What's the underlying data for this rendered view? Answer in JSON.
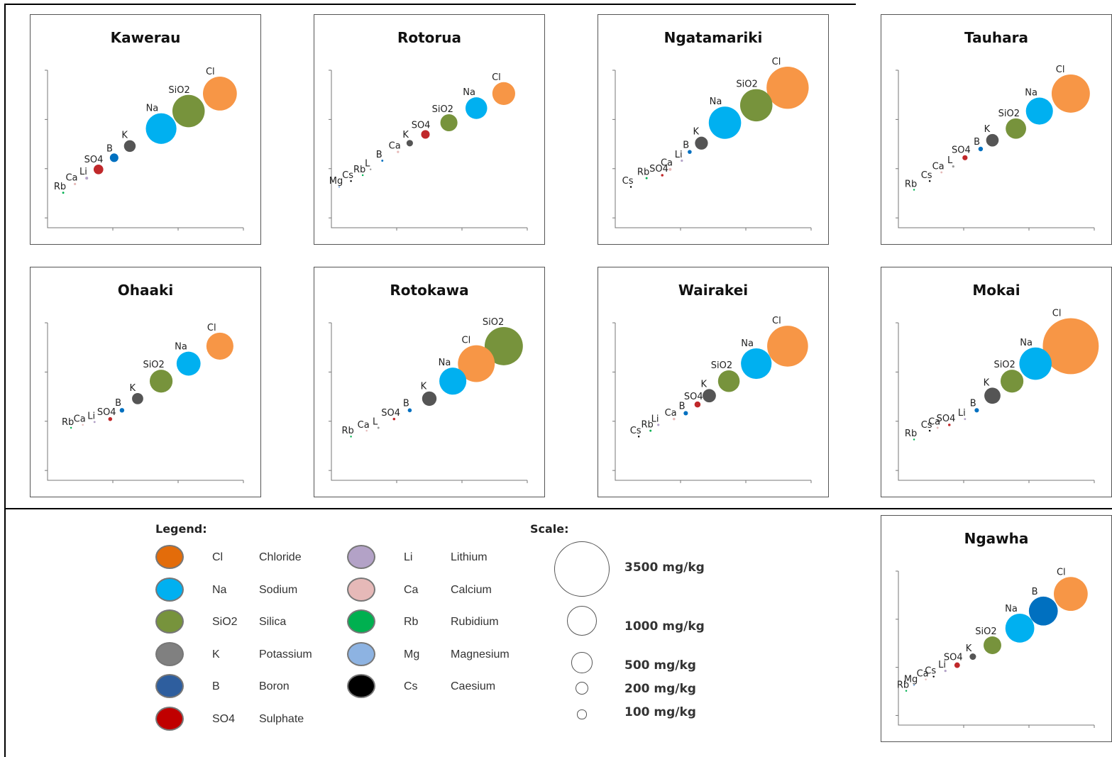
{
  "colors": {
    "Cl": "#f79646",
    "Na": "#00b0f0",
    "SiO2": "#77933c",
    "K": "#555555",
    "B": "#0070c0",
    "SO4": "#c0282a",
    "Li": "#b3a2c7",
    "Ca": "#e6b9b8",
    "Rb": "#00b050",
    "Mg": "#8db3e2",
    "Cs": "#000000"
  },
  "chart_data": [
    {
      "type": "scatter",
      "title": "Kawerau",
      "points": [
        {
          "label": "Cl",
          "x": 2.2,
          "y": 2.3,
          "size": 1100
        },
        {
          "label": "SiO2",
          "x": 1.8,
          "y": 2.0,
          "size": 1000
        },
        {
          "label": "Na",
          "x": 1.45,
          "y": 1.7,
          "size": 900
        },
        {
          "label": "K",
          "x": 1.05,
          "y": 1.4,
          "size": 130
        },
        {
          "label": "B",
          "x": 0.85,
          "y": 1.2,
          "size": 70
        },
        {
          "label": "SO4",
          "x": 0.65,
          "y": 1.0,
          "size": 90
        },
        {
          "label": "Li",
          "x": 0.5,
          "y": 0.85,
          "size": 8
        },
        {
          "label": "Ca",
          "x": 0.35,
          "y": 0.75,
          "size": 5
        },
        {
          "label": "Rb",
          "x": 0.2,
          "y": 0.6,
          "size": 4
        }
      ]
    },
    {
      "type": "scatter",
      "title": "Rotorua",
      "points": [
        {
          "label": "Cl",
          "x": 2.2,
          "y": 2.3,
          "size": 500
        },
        {
          "label": "Na",
          "x": 1.85,
          "y": 2.05,
          "size": 450
        },
        {
          "label": "SiO2",
          "x": 1.5,
          "y": 1.8,
          "size": 280
        },
        {
          "label": "SO4",
          "x": 1.2,
          "y": 1.6,
          "size": 70
        },
        {
          "label": "K",
          "x": 1.0,
          "y": 1.45,
          "size": 40
        },
        {
          "label": "Ca",
          "x": 0.85,
          "y": 1.3,
          "size": 5
        },
        {
          "label": "B",
          "x": 0.65,
          "y": 1.15,
          "size": 4
        },
        {
          "label": "L",
          "x": 0.5,
          "y": 1.0,
          "size": 3
        },
        {
          "label": "Rb",
          "x": 0.4,
          "y": 0.9,
          "size": 3
        },
        {
          "label": "Cs",
          "x": 0.25,
          "y": 0.8,
          "size": 3
        },
        {
          "label": "Mg",
          "x": 0.1,
          "y": 0.7,
          "size": 3
        }
      ]
    },
    {
      "type": "scatter",
      "title": "Ngatamariki",
      "points": [
        {
          "label": "Cl",
          "x": 2.2,
          "y": 2.4,
          "size": 1700
        },
        {
          "label": "SiO2",
          "x": 1.8,
          "y": 2.1,
          "size": 1000
        },
        {
          "label": "Na",
          "x": 1.4,
          "y": 1.8,
          "size": 1000
        },
        {
          "label": "K",
          "x": 1.1,
          "y": 1.45,
          "size": 160
        },
        {
          "label": "B",
          "x": 0.95,
          "y": 1.3,
          "size": 15
        },
        {
          "label": "Li",
          "x": 0.85,
          "y": 1.15,
          "size": 5
        },
        {
          "label": "Ca",
          "x": 0.7,
          "y": 1.0,
          "size": 8
        },
        {
          "label": "SO4",
          "x": 0.6,
          "y": 0.9,
          "size": 6
        },
        {
          "label": "Rb",
          "x": 0.4,
          "y": 0.85,
          "size": 4
        },
        {
          "label": "Cs",
          "x": 0.2,
          "y": 0.7,
          "size": 3
        }
      ]
    },
    {
      "type": "scatter",
      "title": "Tauhara",
      "points": [
        {
          "label": "Cl",
          "x": 2.2,
          "y": 2.3,
          "size": 1400
        },
        {
          "label": "Na",
          "x": 1.8,
          "y": 2.0,
          "size": 700
        },
        {
          "label": "SiO2",
          "x": 1.5,
          "y": 1.7,
          "size": 400
        },
        {
          "label": "K",
          "x": 1.2,
          "y": 1.5,
          "size": 150
        },
        {
          "label": "B",
          "x": 1.05,
          "y": 1.35,
          "size": 20
        },
        {
          "label": "SO4",
          "x": 0.85,
          "y": 1.2,
          "size": 25
        },
        {
          "label": "L",
          "x": 0.7,
          "y": 1.05,
          "size": 5
        },
        {
          "label": "Ca",
          "x": 0.55,
          "y": 0.95,
          "size": 4
        },
        {
          "label": "Cs",
          "x": 0.4,
          "y": 0.8,
          "size": 3
        },
        {
          "label": "Rb",
          "x": 0.2,
          "y": 0.65,
          "size": 3
        }
      ]
    },
    {
      "type": "scatter",
      "title": "Ohaaki",
      "points": [
        {
          "label": "Cl",
          "x": 2.2,
          "y": 2.3,
          "size": 700
        },
        {
          "label": "Na",
          "x": 1.8,
          "y": 2.0,
          "size": 550
        },
        {
          "label": "SiO2",
          "x": 1.45,
          "y": 1.7,
          "size": 500
        },
        {
          "label": "K",
          "x": 1.15,
          "y": 1.4,
          "size": 120
        },
        {
          "label": "B",
          "x": 0.95,
          "y": 1.2,
          "size": 20
        },
        {
          "label": "SO4",
          "x": 0.8,
          "y": 1.05,
          "size": 15
        },
        {
          "label": "Li",
          "x": 0.6,
          "y": 1.0,
          "size": 4
        },
        {
          "label": "Ca",
          "x": 0.45,
          "y": 0.95,
          "size": 3
        },
        {
          "label": "Rb",
          "x": 0.3,
          "y": 0.9,
          "size": 3
        }
      ]
    },
    {
      "type": "scatter",
      "title": "Rotokawa",
      "points": [
        {
          "label": "SiO2",
          "x": 2.2,
          "y": 2.3,
          "size": 1400
        },
        {
          "label": "Cl",
          "x": 1.85,
          "y": 2.0,
          "size": 1300
        },
        {
          "label": "Na",
          "x": 1.55,
          "y": 1.7,
          "size": 700
        },
        {
          "label": "K",
          "x": 1.25,
          "y": 1.4,
          "size": 200
        },
        {
          "label": "B",
          "x": 1.0,
          "y": 1.2,
          "size": 15
        },
        {
          "label": "SO4",
          "x": 0.8,
          "y": 1.05,
          "size": 6
        },
        {
          "label": "L",
          "x": 0.6,
          "y": 0.9,
          "size": 4
        },
        {
          "label": "Ca",
          "x": 0.45,
          "y": 0.85,
          "size": 3
        },
        {
          "label": "Rb",
          "x": 0.25,
          "y": 0.75,
          "size": 3
        }
      ]
    },
    {
      "type": "scatter",
      "title": "Wairakei",
      "points": [
        {
          "label": "Cl",
          "x": 2.2,
          "y": 2.3,
          "size": 1600
        },
        {
          "label": "Na",
          "x": 1.8,
          "y": 2.0,
          "size": 900
        },
        {
          "label": "SiO2",
          "x": 1.45,
          "y": 1.7,
          "size": 450
        },
        {
          "label": "K",
          "x": 1.2,
          "y": 1.45,
          "size": 170
        },
        {
          "label": "SO4",
          "x": 1.05,
          "y": 1.3,
          "size": 35
        },
        {
          "label": "B",
          "x": 0.9,
          "y": 1.15,
          "size": 18
        },
        {
          "label": "Ca",
          "x": 0.75,
          "y": 1.05,
          "size": 6
        },
        {
          "label": "Li",
          "x": 0.55,
          "y": 0.95,
          "size": 5
        },
        {
          "label": "Rb",
          "x": 0.45,
          "y": 0.85,
          "size": 4
        },
        {
          "label": "Cs",
          "x": 0.3,
          "y": 0.75,
          "size": 3
        }
      ]
    },
    {
      "type": "scatter",
      "title": "Mokai",
      "points": [
        {
          "label": "Cl",
          "x": 2.2,
          "y": 2.3,
          "size": 3000
        },
        {
          "label": "Na",
          "x": 1.75,
          "y": 2.0,
          "size": 1000
        },
        {
          "label": "SiO2",
          "x": 1.45,
          "y": 1.7,
          "size": 500
        },
        {
          "label": "K",
          "x": 1.2,
          "y": 1.45,
          "size": 250
        },
        {
          "label": "B",
          "x": 1.0,
          "y": 1.2,
          "size": 18
        },
        {
          "label": "Li",
          "x": 0.85,
          "y": 1.05,
          "size": 4
        },
        {
          "label": "SO4",
          "x": 0.65,
          "y": 0.95,
          "size": 6
        },
        {
          "label": "Ca",
          "x": 0.5,
          "y": 0.9,
          "size": 4
        },
        {
          "label": "Cs",
          "x": 0.4,
          "y": 0.85,
          "size": 3
        },
        {
          "label": "Rb",
          "x": 0.2,
          "y": 0.7,
          "size": 3
        }
      ]
    },
    {
      "type": "scatter",
      "title": "Ngawha",
      "points": [
        {
          "label": "Cl",
          "x": 2.2,
          "y": 2.3,
          "size": 1100
        },
        {
          "label": "B",
          "x": 1.85,
          "y": 2.0,
          "size": 800
        },
        {
          "label": "Na",
          "x": 1.55,
          "y": 1.7,
          "size": 800
        },
        {
          "label": "SiO2",
          "x": 1.2,
          "y": 1.4,
          "size": 300
        },
        {
          "label": "K",
          "x": 0.95,
          "y": 1.2,
          "size": 40
        },
        {
          "label": "SO4",
          "x": 0.75,
          "y": 1.05,
          "size": 30
        },
        {
          "label": "Li",
          "x": 0.6,
          "y": 0.95,
          "size": 5
        },
        {
          "label": "Cs",
          "x": 0.45,
          "y": 0.85,
          "size": 3
        },
        {
          "label": "Ca",
          "x": 0.35,
          "y": 0.8,
          "size": 3
        },
        {
          "label": "Mg",
          "x": 0.2,
          "y": 0.7,
          "size": 3
        },
        {
          "label": "Rb",
          "x": 0.1,
          "y": 0.6,
          "size": 3
        }
      ]
    }
  ],
  "legend": {
    "title": "Legend:",
    "items": [
      {
        "symbol": "Cl",
        "name": "Chloride",
        "color": "#e36c0a"
      },
      {
        "symbol": "Na",
        "name": "Sodium",
        "color": "#00b0f0"
      },
      {
        "symbol": "SiO2",
        "name": "Silica",
        "color": "#77933c"
      },
      {
        "symbol": "K",
        "name": "Potassium",
        "color": "#808080"
      },
      {
        "symbol": "B",
        "name": "Boron",
        "color": "#2e5e9e"
      },
      {
        "symbol": "SO4",
        "name": "Sulphate",
        "color": "#c00000"
      },
      {
        "symbol": "Li",
        "name": "Lithium",
        "color": "#b3a2c7"
      },
      {
        "symbol": "Ca",
        "name": "Calcium",
        "color": "#e6b9b8"
      },
      {
        "symbol": "Rb",
        "name": "Rubidium",
        "color": "#00b050"
      },
      {
        "symbol": "Mg",
        "name": "Magnesium",
        "color": "#8db3e2"
      },
      {
        "symbol": "Cs",
        "name": "Caesium",
        "color": "#000000"
      }
    ]
  },
  "scale": {
    "title": "Scale:",
    "items": [
      {
        "label": "3500 mg/kg",
        "value": 3500
      },
      {
        "label": "1000 mg/kg",
        "value": 1000
      },
      {
        "label": "500 mg/kg",
        "value": 500
      },
      {
        "label": "200 mg/kg",
        "value": 200
      },
      {
        "label": "100 mg/kg",
        "value": 100
      }
    ]
  }
}
